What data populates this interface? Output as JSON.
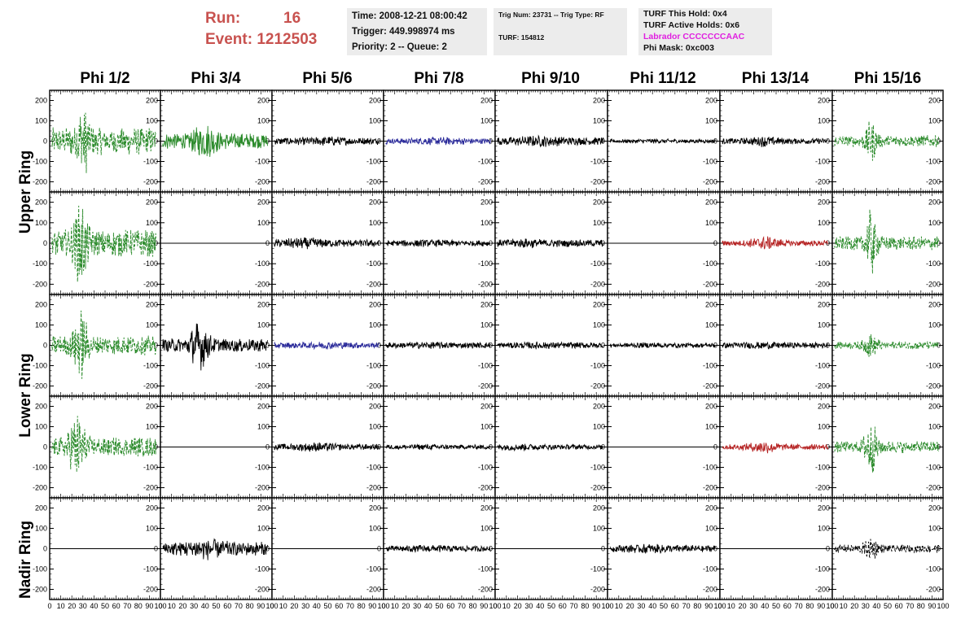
{
  "header": {
    "run_label": "Run:",
    "run_value": "16",
    "event_label": "Event:",
    "event_value": "1212503",
    "time": "Time: 2008-12-21 08:00:42",
    "trigger": "Trigger: 449.998974 ms",
    "priority": "Priority: 2 -- Queue: 2",
    "trig_num": "Trig Num: 23731 -- Trig Type: RF",
    "turf": "TURF: 154812",
    "turf_hold": "TURF This Hold: 0x4",
    "turf_active": "TURF Active Holds: 0x6",
    "labrador": "Labrador CCCCCCCAAC",
    "phi_mask": "Phi Mask: 0xc003"
  },
  "chart_data": {
    "type": "line",
    "columns": [
      "Phi 1/2",
      "Phi 3/4",
      "Phi 5/6",
      "Phi 7/8",
      "Phi 9/10",
      "Phi 11/12",
      "Phi 13/14",
      "Phi 15/16"
    ],
    "rows": [
      "Upper Ring",
      "Upper Ring",
      "Lower Ring",
      "Lower Ring",
      "Nadir Ring"
    ],
    "row_labels": [
      "Upper Ring",
      "Lower Ring",
      "Nadir Ring"
    ],
    "ylim": [
      -250,
      250
    ],
    "yticks": [
      -200,
      -100,
      0,
      100,
      200
    ],
    "xlim": [
      0,
      100
    ],
    "xticks": [
      0,
      10,
      20,
      30,
      40,
      50,
      60,
      70,
      80,
      90,
      100
    ],
    "colors": {
      "green": "#2a8a2a",
      "black": "#000000",
      "blue": "#2b2b9a",
      "red": "#b52222"
    },
    "panels": [
      [
        {
          "color": "green",
          "dashed": true,
          "amp": 70,
          "peak": 30,
          "peakAmp": 190,
          "spread": 6
        },
        {
          "color": "green",
          "dashed": false,
          "amp": 40,
          "peak": 40,
          "peakAmp": 95,
          "spread": 10
        },
        {
          "color": "black",
          "dashed": false,
          "amp": 18,
          "peak": 50,
          "peakAmp": 25,
          "spread": 20
        },
        {
          "color": "blue",
          "dashed": false,
          "amp": 15,
          "peak": 50,
          "peakAmp": 22,
          "spread": 20
        },
        {
          "color": "black",
          "dashed": false,
          "amp": 20,
          "peak": 40,
          "peakAmp": 30,
          "spread": 20
        },
        {
          "color": "black",
          "dashed": false,
          "amp": 10,
          "peak": 40,
          "peakAmp": 12,
          "spread": 20
        },
        {
          "color": "black",
          "dashed": false,
          "amp": 15,
          "peak": 40,
          "peakAmp": 30,
          "spread": 12
        },
        {
          "color": "green",
          "dashed": true,
          "amp": 30,
          "peak": 35,
          "peakAmp": 110,
          "spread": 5
        }
      ],
      [
        {
          "color": "green",
          "dashed": true,
          "amp": 70,
          "peak": 28,
          "peakAmp": 230,
          "spread": 6
        },
        {
          "color": "black",
          "dashed": false,
          "amp": 0,
          "peak": 0,
          "peakAmp": 0,
          "spread": 1
        },
        {
          "color": "black",
          "dashed": false,
          "amp": 18,
          "peak": 30,
          "peakAmp": 30,
          "spread": 20
        },
        {
          "color": "black",
          "dashed": false,
          "amp": 15,
          "peak": 40,
          "peakAmp": 20,
          "spread": 20
        },
        {
          "color": "black",
          "dashed": false,
          "amp": 18,
          "peak": 30,
          "peakAmp": 25,
          "spread": 20
        },
        {
          "color": "black",
          "dashed": false,
          "amp": 0,
          "peak": 0,
          "peakAmp": 0,
          "spread": 1
        },
        {
          "color": "red",
          "dashed": false,
          "amp": 15,
          "peak": 40,
          "peakAmp": 40,
          "spread": 12
        },
        {
          "color": "green",
          "dashed": true,
          "amp": 35,
          "peak": 35,
          "peakAmp": 180,
          "spread": 5
        }
      ],
      [
        {
          "color": "green",
          "dashed": true,
          "amp": 50,
          "peak": 28,
          "peakAmp": 190,
          "spread": 6
        },
        {
          "color": "black",
          "dashed": false,
          "amp": 35,
          "peak": 35,
          "peakAmp": 130,
          "spread": 8
        },
        {
          "color": "blue",
          "dashed": false,
          "amp": 15,
          "peak": 50,
          "peakAmp": 20,
          "spread": 20
        },
        {
          "color": "black",
          "dashed": false,
          "amp": 15,
          "peak": 40,
          "peakAmp": 20,
          "spread": 20
        },
        {
          "color": "black",
          "dashed": false,
          "amp": 15,
          "peak": 40,
          "peakAmp": 20,
          "spread": 20
        },
        {
          "color": "black",
          "dashed": false,
          "amp": 12,
          "peak": 40,
          "peakAmp": 15,
          "spread": 20
        },
        {
          "color": "black",
          "dashed": false,
          "amp": 15,
          "peak": 40,
          "peakAmp": 20,
          "spread": 20
        },
        {
          "color": "green",
          "dashed": true,
          "amp": 20,
          "peak": 35,
          "peakAmp": 70,
          "spread": 6
        }
      ],
      [
        {
          "color": "green",
          "dashed": true,
          "amp": 50,
          "peak": 25,
          "peakAmp": 180,
          "spread": 7
        },
        {
          "color": "black",
          "dashed": false,
          "amp": 0,
          "peak": 0,
          "peakAmp": 0,
          "spread": 1
        },
        {
          "color": "black",
          "dashed": false,
          "amp": 15,
          "peak": 40,
          "peakAmp": 25,
          "spread": 20
        },
        {
          "color": "black",
          "dashed": false,
          "amp": 12,
          "peak": 40,
          "peakAmp": 15,
          "spread": 20
        },
        {
          "color": "black",
          "dashed": false,
          "amp": 13,
          "peak": 20,
          "peakAmp": 20,
          "spread": 20
        },
        {
          "color": "black",
          "dashed": false,
          "amp": 0,
          "peak": 0,
          "peakAmp": 0,
          "spread": 1
        },
        {
          "color": "red",
          "dashed": false,
          "amp": 15,
          "peak": 40,
          "peakAmp": 35,
          "spread": 12
        },
        {
          "color": "green",
          "dashed": true,
          "amp": 30,
          "peak": 35,
          "peakAmp": 140,
          "spread": 6
        }
      ],
      [
        {
          "color": "black",
          "dashed": false,
          "amp": 0,
          "peak": 0,
          "peakAmp": 0,
          "spread": 1
        },
        {
          "color": "black",
          "dashed": false,
          "amp": 35,
          "peak": 40,
          "peakAmp": 60,
          "spread": 15
        },
        {
          "color": "black",
          "dashed": false,
          "amp": 0,
          "peak": 0,
          "peakAmp": 0,
          "spread": 1
        },
        {
          "color": "black",
          "dashed": false,
          "amp": 15,
          "peak": 40,
          "peakAmp": 20,
          "spread": 20
        },
        {
          "color": "black",
          "dashed": false,
          "amp": 0,
          "peak": 0,
          "peakAmp": 0,
          "spread": 1
        },
        {
          "color": "black",
          "dashed": false,
          "amp": 18,
          "peak": 40,
          "peakAmp": 25,
          "spread": 20
        },
        {
          "color": "black",
          "dashed": false,
          "amp": 0,
          "peak": 0,
          "peakAmp": 0,
          "spread": 1
        },
        {
          "color": "black",
          "dashed": true,
          "amp": 20,
          "peak": 35,
          "peakAmp": 70,
          "spread": 6
        }
      ]
    ]
  }
}
